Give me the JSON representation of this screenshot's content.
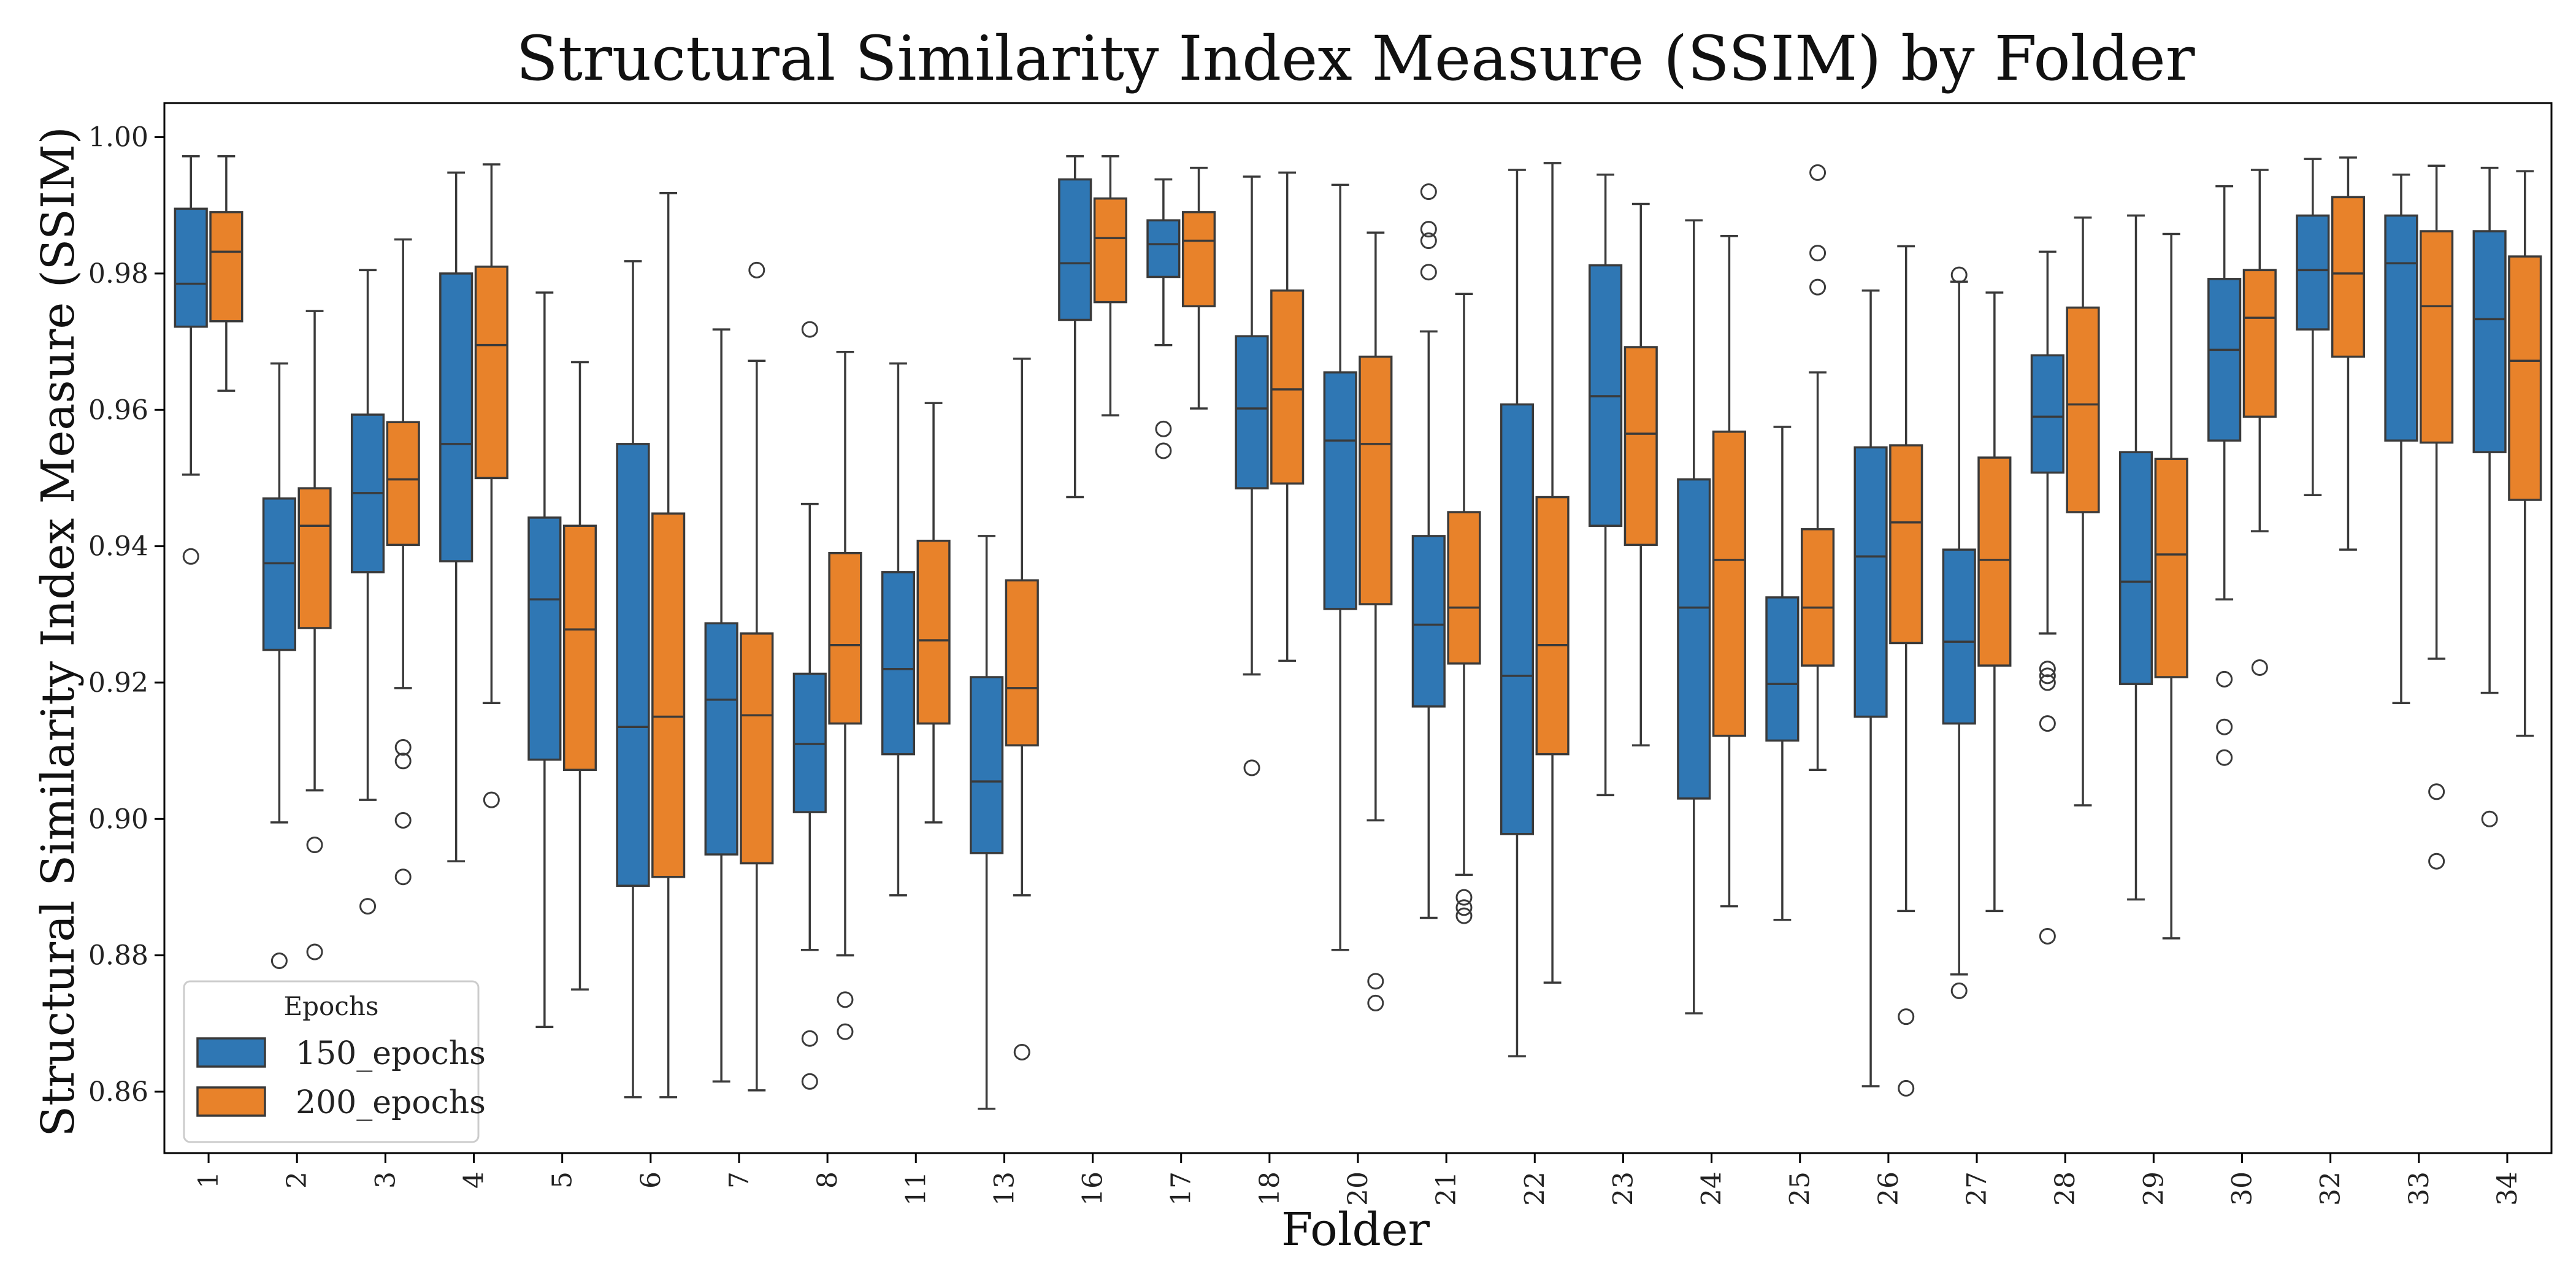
{
  "chart_data": {
    "type": "box",
    "title": "Structural Similarity Index Measure (SSIM) by Folder",
    "xlabel": "Folder",
    "ylabel": "Structural Similarity Index Measure (SSIM)",
    "ylim": [
      0.851,
      1.005
    ],
    "yticks": [
      "0.86",
      "0.88",
      "0.90",
      "0.92",
      "0.94",
      "0.96",
      "0.98",
      "1.00"
    ],
    "grid": false,
    "legend": {
      "title": "Epochs",
      "placement": "bottom-left"
    },
    "categories": [
      "1",
      "2",
      "3",
      "4",
      "5",
      "6",
      "7",
      "8",
      "11",
      "13",
      "16",
      "17",
      "18",
      "20",
      "21",
      "22",
      "23",
      "24",
      "25",
      "26",
      "27",
      "28",
      "29",
      "30",
      "32",
      "33",
      "34"
    ],
    "series": [
      {
        "name": "150_epochs",
        "color": "#2f77b4",
        "boxes": [
          {
            "whislo": 0.9505,
            "q1": 0.9722,
            "med": 0.9785,
            "q3": 0.9895,
            "whishi": 0.9972,
            "fliers": [
              0.9385
            ]
          },
          {
            "whislo": 0.8995,
            "q1": 0.9248,
            "med": 0.9375,
            "q3": 0.947,
            "whishi": 0.9668,
            "fliers": [
              0.8792
            ]
          },
          {
            "whislo": 0.9028,
            "q1": 0.9362,
            "med": 0.9478,
            "q3": 0.9593,
            "whishi": 0.9805,
            "fliers": [
              0.8872
            ]
          },
          {
            "whislo": 0.8938,
            "q1": 0.9378,
            "med": 0.955,
            "q3": 0.98,
            "whishi": 0.9948,
            "fliers": []
          },
          {
            "whislo": 0.8695,
            "q1": 0.9087,
            "med": 0.9322,
            "q3": 0.9442,
            "whishi": 0.9772,
            "fliers": []
          },
          {
            "whislo": 0.8592,
            "q1": 0.8902,
            "med": 0.9135,
            "q3": 0.955,
            "whishi": 0.9818,
            "fliers": []
          },
          {
            "whislo": 0.8615,
            "q1": 0.8948,
            "med": 0.9175,
            "q3": 0.9287,
            "whishi": 0.9718,
            "fliers": []
          },
          {
            "whislo": 0.8808,
            "q1": 0.901,
            "med": 0.911,
            "q3": 0.9213,
            "whishi": 0.9462,
            "fliers": [
              0.9718,
              0.8678,
              0.8615
            ]
          },
          {
            "whislo": 0.8888,
            "q1": 0.9095,
            "med": 0.922,
            "q3": 0.9362,
            "whishi": 0.9668,
            "fliers": []
          },
          {
            "whislo": 0.8575,
            "q1": 0.895,
            "med": 0.9055,
            "q3": 0.9208,
            "whishi": 0.9415,
            "fliers": []
          },
          {
            "whislo": 0.9472,
            "q1": 0.9732,
            "med": 0.9815,
            "q3": 0.9938,
            "whishi": 0.9972,
            "fliers": []
          },
          {
            "whislo": 0.9695,
            "q1": 0.9795,
            "med": 0.9843,
            "q3": 0.9878,
            "whishi": 0.9938,
            "fliers": [
              0.9572,
              0.954
            ]
          },
          {
            "whislo": 0.9212,
            "q1": 0.9485,
            "med": 0.9602,
            "q3": 0.9708,
            "whishi": 0.9942,
            "fliers": [
              0.9075
            ]
          },
          {
            "whislo": 0.8808,
            "q1": 0.9308,
            "med": 0.9555,
            "q3": 0.9655,
            "whishi": 0.993,
            "fliers": []
          },
          {
            "whislo": 0.8855,
            "q1": 0.9165,
            "med": 0.9285,
            "q3": 0.9415,
            "whishi": 0.9715,
            "fliers": [
              0.992,
              0.9865,
              0.9848,
              0.9802
            ]
          },
          {
            "whislo": 0.8652,
            "q1": 0.8978,
            "med": 0.921,
            "q3": 0.9608,
            "whishi": 0.9952,
            "fliers": []
          },
          {
            "whislo": 0.9035,
            "q1": 0.943,
            "med": 0.962,
            "q3": 0.9812,
            "whishi": 0.9945,
            "fliers": []
          },
          {
            "whislo": 0.8715,
            "q1": 0.903,
            "med": 0.931,
            "q3": 0.9498,
            "whishi": 0.9878,
            "fliers": []
          },
          {
            "whislo": 0.8852,
            "q1": 0.9115,
            "med": 0.9198,
            "q3": 0.9325,
            "whishi": 0.9575,
            "fliers": []
          },
          {
            "whislo": 0.8608,
            "q1": 0.915,
            "med": 0.9385,
            "q3": 0.9545,
            "whishi": 0.9775,
            "fliers": []
          },
          {
            "whislo": 0.8772,
            "q1": 0.914,
            "med": 0.926,
            "q3": 0.9395,
            "whishi": 0.9788,
            "fliers": [
              0.9798,
              0.8748
            ]
          },
          {
            "whislo": 0.9272,
            "q1": 0.9508,
            "med": 0.959,
            "q3": 0.968,
            "whishi": 0.9832,
            "fliers": [
              0.922,
              0.921,
              0.92,
              0.914,
              0.8828
            ]
          },
          {
            "whislo": 0.8882,
            "q1": 0.9198,
            "med": 0.9348,
            "q3": 0.9538,
            "whishi": 0.9885,
            "fliers": []
          },
          {
            "whislo": 0.9322,
            "q1": 0.9555,
            "med": 0.9688,
            "q3": 0.9792,
            "whishi": 0.9928,
            "fliers": [
              0.9205,
              0.9135,
              0.909
            ]
          },
          {
            "whislo": 0.9475,
            "q1": 0.9718,
            "med": 0.9805,
            "q3": 0.9885,
            "whishi": 0.9968,
            "fliers": []
          },
          {
            "whislo": 0.917,
            "q1": 0.9555,
            "med": 0.9815,
            "q3": 0.9885,
            "whishi": 0.9945,
            "fliers": []
          },
          {
            "whislo": 0.9185,
            "q1": 0.9538,
            "med": 0.9733,
            "q3": 0.9862,
            "whishi": 0.9955,
            "fliers": [
              0.9
            ]
          }
        ]
      },
      {
        "name": "200_epochs",
        "color": "#e8822a",
        "boxes": [
          {
            "whislo": 0.9628,
            "q1": 0.973,
            "med": 0.9832,
            "q3": 0.989,
            "whishi": 0.9972,
            "fliers": []
          },
          {
            "whislo": 0.9042,
            "q1": 0.928,
            "med": 0.943,
            "q3": 0.9485,
            "whishi": 0.9745,
            "fliers": [
              0.8962,
              0.8805
            ]
          },
          {
            "whislo": 0.9192,
            "q1": 0.9402,
            "med": 0.9498,
            "q3": 0.9582,
            "whishi": 0.985,
            "fliers": [
              0.9105,
              0.9085,
              0.8998,
              0.8915
            ]
          },
          {
            "whislo": 0.917,
            "q1": 0.95,
            "med": 0.9695,
            "q3": 0.981,
            "whishi": 0.996,
            "fliers": [
              0.9028
            ]
          },
          {
            "whislo": 0.875,
            "q1": 0.9072,
            "med": 0.9278,
            "q3": 0.943,
            "whishi": 0.967,
            "fliers": []
          },
          {
            "whislo": 0.8592,
            "q1": 0.8915,
            "med": 0.915,
            "q3": 0.9448,
            "whishi": 0.9918,
            "fliers": []
          },
          {
            "whislo": 0.8602,
            "q1": 0.8935,
            "med": 0.9152,
            "q3": 0.9272,
            "whishi": 0.9672,
            "fliers": [
              0.9805
            ]
          },
          {
            "whislo": 0.88,
            "q1": 0.914,
            "med": 0.9255,
            "q3": 0.939,
            "whishi": 0.9685,
            "fliers": [
              0.8735,
              0.8688
            ]
          },
          {
            "whislo": 0.8995,
            "q1": 0.914,
            "med": 0.9262,
            "q3": 0.9408,
            "whishi": 0.961,
            "fliers": []
          },
          {
            "whislo": 0.8888,
            "q1": 0.9108,
            "med": 0.9192,
            "q3": 0.935,
            "whishi": 0.9675,
            "fliers": [
              0.8658
            ]
          },
          {
            "whislo": 0.9592,
            "q1": 0.9758,
            "med": 0.9852,
            "q3": 0.991,
            "whishi": 0.9972,
            "fliers": []
          },
          {
            "whislo": 0.9602,
            "q1": 0.9752,
            "med": 0.9848,
            "q3": 0.989,
            "whishi": 0.9955,
            "fliers": []
          },
          {
            "whislo": 0.9232,
            "q1": 0.9492,
            "med": 0.963,
            "q3": 0.9775,
            "whishi": 0.9948,
            "fliers": []
          },
          {
            "whislo": 0.8998,
            "q1": 0.9315,
            "med": 0.955,
            "q3": 0.9678,
            "whishi": 0.986,
            "fliers": [
              0.8762,
              0.873
            ]
          },
          {
            "whislo": 0.8918,
            "q1": 0.9228,
            "med": 0.931,
            "q3": 0.945,
            "whishi": 0.977,
            "fliers": [
              0.8885,
              0.887,
              0.8858
            ]
          },
          {
            "whislo": 0.876,
            "q1": 0.9095,
            "med": 0.9255,
            "q3": 0.9472,
            "whishi": 0.9962,
            "fliers": []
          },
          {
            "whislo": 0.9108,
            "q1": 0.9402,
            "med": 0.9565,
            "q3": 0.9692,
            "whishi": 0.9902,
            "fliers": []
          },
          {
            "whislo": 0.8872,
            "q1": 0.9122,
            "med": 0.938,
            "q3": 0.9568,
            "whishi": 0.9855,
            "fliers": []
          },
          {
            "whislo": 0.9072,
            "q1": 0.9225,
            "med": 0.931,
            "q3": 0.9425,
            "whishi": 0.9655,
            "fliers": [
              0.9948,
              0.983,
              0.978
            ]
          },
          {
            "whislo": 0.8865,
            "q1": 0.9258,
            "med": 0.9435,
            "q3": 0.9548,
            "whishi": 0.984,
            "fliers": [
              0.871,
              0.8605
            ]
          },
          {
            "whislo": 0.8865,
            "q1": 0.9225,
            "med": 0.938,
            "q3": 0.953,
            "whishi": 0.9772,
            "fliers": []
          },
          {
            "whislo": 0.902,
            "q1": 0.945,
            "med": 0.9608,
            "q3": 0.975,
            "whishi": 0.9882,
            "fliers": []
          },
          {
            "whislo": 0.8825,
            "q1": 0.9208,
            "med": 0.9388,
            "q3": 0.9528,
            "whishi": 0.9858,
            "fliers": []
          },
          {
            "whislo": 0.9422,
            "q1": 0.959,
            "med": 0.9735,
            "q3": 0.9805,
            "whishi": 0.9952,
            "fliers": [
              0.9222
            ]
          },
          {
            "whislo": 0.9395,
            "q1": 0.9678,
            "med": 0.98,
            "q3": 0.9912,
            "whishi": 0.997,
            "fliers": []
          },
          {
            "whislo": 0.9235,
            "q1": 0.9552,
            "med": 0.9752,
            "q3": 0.9862,
            "whishi": 0.9958,
            "fliers": [
              0.904,
              0.8938
            ]
          },
          {
            "whislo": 0.9122,
            "q1": 0.9468,
            "med": 0.9672,
            "q3": 0.9825,
            "whishi": 0.995,
            "fliers": []
          }
        ]
      }
    ]
  }
}
